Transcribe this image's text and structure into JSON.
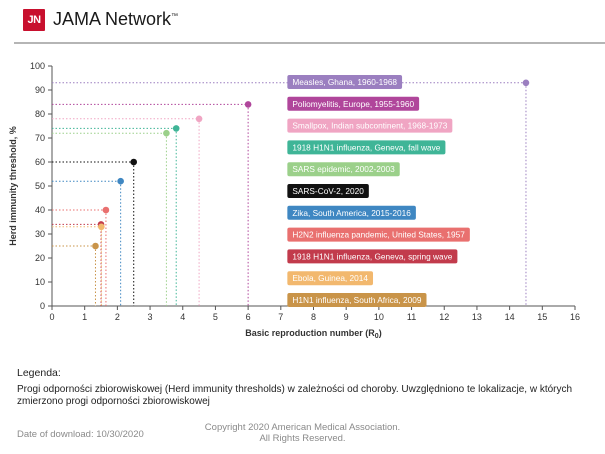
{
  "header": {
    "logo_mark": "JN",
    "brand": "JAMA Network",
    "trademark": "™"
  },
  "chart_data": {
    "type": "scatter",
    "xlabel": "Basic reproduction number (R",
    "xlabel_sub": "0",
    "xlabel_end": ")",
    "ylabel": "Herd immunity threshold, %",
    "xlim": [
      0,
      16
    ],
    "ylim": [
      0,
      100
    ],
    "xticks": [
      0,
      1,
      2,
      3,
      4,
      5,
      6,
      7,
      8,
      9,
      10,
      11,
      12,
      13,
      14,
      15,
      16
    ],
    "yticks": [
      0,
      10,
      20,
      30,
      40,
      50,
      60,
      70,
      80,
      90,
      100
    ],
    "grid": false,
    "series": [
      {
        "name": "Measles, Ghana, 1960-1968",
        "x": 14.5,
        "y": 93,
        "color": "#9b7fc0"
      },
      {
        "name": "Poliomyelitis, Europe, 1955-1960",
        "x": 6,
        "y": 84,
        "color": "#b0469b"
      },
      {
        "name": "Smallpox, Indian subcontinent, 1968-1973",
        "x": 4.5,
        "y": 78,
        "color": "#f0a5c3"
      },
      {
        "name": "1918 H1N1 influenza, Geneva, fall wave",
        "x": 3.8,
        "y": 74,
        "color": "#3fb597"
      },
      {
        "name": "SARS epidemic, 2002-2003",
        "x": 3.5,
        "y": 72,
        "color": "#9bd08a"
      },
      {
        "name": "SARS-CoV-2, 2020",
        "x": 2.5,
        "y": 60,
        "color": "#111111"
      },
      {
        "name": "Zika, South America, 2015-2016",
        "x": 2.1,
        "y": 52,
        "color": "#3f87c2"
      },
      {
        "name": "H2N2 influenza pandemic, United States, 1957",
        "x": 1.65,
        "y": 40,
        "color": "#e9706f"
      },
      {
        "name": "1918 H1N1 influenza, Geneva, spring wave",
        "x": 1.5,
        "y": 34,
        "color": "#c23b4c"
      },
      {
        "name": "Ebola, Guinea, 2014",
        "x": 1.51,
        "y": 33,
        "color": "#f2b86e"
      },
      {
        "name": "H1N1 influenza, South Africa, 2009",
        "x": 1.33,
        "y": 25,
        "color": "#c99449"
      }
    ]
  },
  "legend": {
    "title": "Legenda:",
    "description": "Progi odporności zbiorowiskowej (Herd immunity thresholds) w zależności od choroby. Uwzględniono te lokalizacje, w których zmierzono progi odporności zbiorowiskowej"
  },
  "footer": {
    "date": "Date of download:  10/30/2020",
    "copyright_line1": "Copyright 2020 American Medical Association.",
    "copyright_line2": "All Rights Reserved."
  }
}
